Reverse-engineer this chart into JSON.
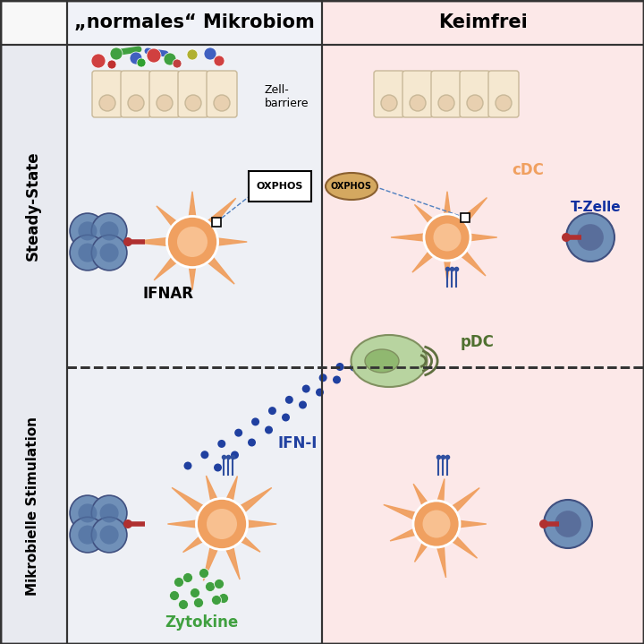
{
  "col_headers": [
    "„normales“ Mikrobiom",
    "Keimfrei"
  ],
  "row_headers": [
    "Steady-State",
    "Mikrobielle Stimulation"
  ],
  "left_bg": "#eef0f5",
  "right_bg": "#fce8e8",
  "header_left_bg": "#f0f2f8",
  "header_right_bg": "#fce8e8",
  "cdc_color": "#f0a060",
  "pdc_color": "#b8d4a0",
  "tcell_color": "#6080b0",
  "bcell_color": "#7090b8",
  "ifn_dot_color": "#2040a0",
  "cytokine_color": "#40a040",
  "label_cdc": "cDC",
  "label_pdc": "pDC",
  "label_tzelle": "T-Zelle",
  "label_ifnar": "IFNAR",
  "label_ifni": "IFN-I",
  "label_zytokine": "Zytokine",
  "label_zellbarriere": "Zell-\nbarriere",
  "label_oxphos": "OXPHOS",
  "border_color": "#333333",
  "dashed_line_color": "#5080c0"
}
